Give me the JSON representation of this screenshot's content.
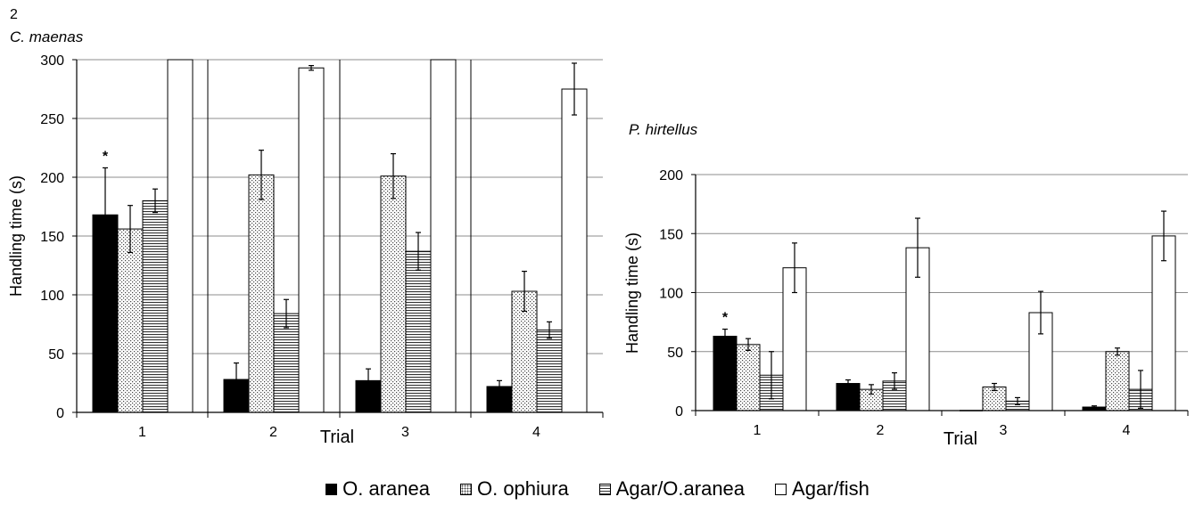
{
  "figure_number": "2",
  "legend": [
    {
      "name": "O. aranea",
      "pattern": "solid"
    },
    {
      "name": "O. ophiura",
      "pattern": "dots"
    },
    {
      "name": "Agar/O.aranea",
      "pattern": "hlines"
    },
    {
      "name": "Agar/fish",
      "pattern": "white"
    }
  ],
  "chart_data": [
    {
      "type": "bar",
      "title": "C. maenas",
      "xlabel": "Trial",
      "ylabel": "Handling time (s)",
      "ylim": [
        0,
        300
      ],
      "yticks": [
        0,
        50,
        100,
        150,
        200,
        250,
        300
      ],
      "grid": true,
      "categories": [
        "1",
        "2",
        "3",
        "4"
      ],
      "annotations": [
        {
          "category": "1",
          "series": "O. aranea",
          "text": "*"
        }
      ],
      "series": [
        {
          "name": "O. aranea",
          "values": [
            168,
            28,
            27,
            22
          ],
          "errors": [
            40,
            14,
            10,
            5
          ]
        },
        {
          "name": "O. ophiura",
          "values": [
            156,
            202,
            201,
            103
          ],
          "errors": [
            20,
            21,
            19,
            17
          ]
        },
        {
          "name": "Agar/O.aranea",
          "values": [
            180,
            84,
            137,
            70
          ],
          "errors": [
            10,
            12,
            16,
            7
          ]
        },
        {
          "name": "Agar/fish",
          "values": [
            300,
            293,
            300,
            275
          ],
          "errors": [
            0,
            2,
            0,
            22
          ]
        }
      ]
    },
    {
      "type": "bar",
      "title": "P. hirtellus",
      "xlabel": "Trial",
      "ylabel": "Handling time (s)",
      "ylim": [
        0,
        200
      ],
      "yticks": [
        0,
        50,
        100,
        150,
        200
      ],
      "grid": true,
      "categories": [
        "1",
        "2",
        "3",
        "4"
      ],
      "annotations": [
        {
          "category": "1",
          "series": "O. aranea",
          "text": "*"
        }
      ],
      "series": [
        {
          "name": "O. aranea",
          "values": [
            63,
            23,
            0,
            3
          ],
          "errors": [
            6,
            3,
            0,
            1
          ]
        },
        {
          "name": "O. ophiura",
          "values": [
            56,
            18,
            20,
            50
          ],
          "errors": [
            5,
            4,
            3,
            3
          ]
        },
        {
          "name": "Agar/O.aranea",
          "values": [
            30,
            25,
            8,
            18
          ],
          "errors": [
            20,
            7,
            3,
            16
          ]
        },
        {
          "name": "Agar/fish",
          "values": [
            121,
            138,
            83,
            148
          ],
          "errors": [
            21,
            25,
            18,
            21
          ]
        }
      ]
    }
  ]
}
